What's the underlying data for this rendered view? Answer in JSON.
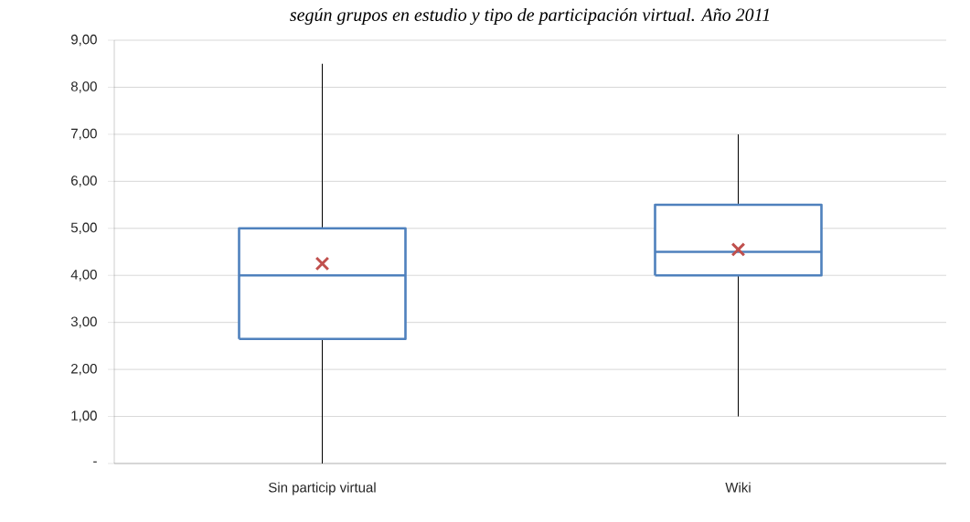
{
  "chart_data": {
    "type": "box",
    "title": "según grupos en estudio y tipo de participación virtual. Año 2011",
    "categories": [
      "Sin particip virtual",
      "Wiki"
    ],
    "series": [
      {
        "color": "#4f81bd",
        "boxes": [
          {
            "low": 0,
            "q1": 2.65,
            "median": 4.0,
            "q3": 5.0,
            "high": 8.5,
            "mean": 4.25
          },
          {
            "low": 1.0,
            "q1": 4.0,
            "median": 4.5,
            "q3": 5.5,
            "high": 7.0,
            "mean": 4.55
          }
        ]
      }
    ],
    "ylim": [
      0,
      9
    ],
    "yticks": [
      {
        "value": 0,
        "label": "-"
      },
      {
        "value": 1,
        "label": "1,00"
      },
      {
        "value": 2,
        "label": "2,00"
      },
      {
        "value": 3,
        "label": "3,00"
      },
      {
        "value": 4,
        "label": "4,00"
      },
      {
        "value": 5,
        "label": "5,00"
      },
      {
        "value": 6,
        "label": "6,00"
      },
      {
        "value": 7,
        "label": "7,00"
      },
      {
        "value": 8,
        "label": "8,00"
      },
      {
        "value": 9,
        "label": "9,00"
      }
    ],
    "grid": "y",
    "marker": "cross"
  }
}
